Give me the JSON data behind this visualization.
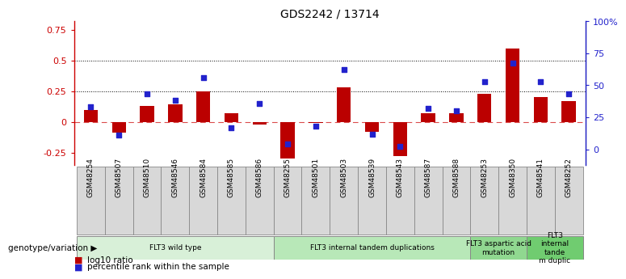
{
  "title": "GDS2242 / 13714",
  "samples": [
    "GSM48254",
    "GSM48507",
    "GSM48510",
    "GSM48546",
    "GSM48584",
    "GSM48585",
    "GSM48586",
    "GSM48255",
    "GSM48501",
    "GSM48503",
    "GSM48539",
    "GSM48543",
    "GSM48587",
    "GSM48588",
    "GSM48253",
    "GSM48350",
    "GSM48541",
    "GSM48252"
  ],
  "log10_ratio": [
    0.1,
    -0.09,
    0.13,
    0.14,
    0.25,
    0.07,
    -0.02,
    -0.3,
    -0.01,
    0.28,
    -0.08,
    -0.28,
    0.07,
    0.07,
    0.23,
    0.6,
    0.2,
    0.17
  ],
  "percentile_rank": [
    33,
    11,
    43,
    38,
    56,
    17,
    36,
    4,
    18,
    62,
    12,
    2,
    32,
    30,
    53,
    67,
    53,
    43
  ],
  "groups": [
    {
      "label": "FLT3 wild type",
      "start": 0,
      "end": 6,
      "color": "#d8f0d8"
    },
    {
      "label": "FLT3 internal tandem duplications",
      "start": 7,
      "end": 13,
      "color": "#b8e8b8"
    },
    {
      "label": "FLT3 aspartic acid\nmutation",
      "start": 14,
      "end": 15,
      "color": "#90d890"
    },
    {
      "label": "FLT3\ninternal\ntande\nm duplic",
      "start": 16,
      "end": 17,
      "color": "#70cc70"
    }
  ],
  "bar_color": "#bb0000",
  "dot_color": "#2222cc",
  "ylim_left": [
    -0.35,
    0.82
  ],
  "ylim_right": [
    -12.25,
    100
  ],
  "yticks_left": [
    -0.25,
    0.0,
    0.25,
    0.5,
    0.75
  ],
  "ytick_labels_left": [
    "-0.25",
    "0",
    "0.25",
    "0.5",
    "0.75"
  ],
  "yticks_right": [
    0,
    25,
    50,
    75,
    100
  ],
  "ytick_labels_right": [
    "0",
    "25",
    "50",
    "75",
    "100%"
  ],
  "hlines": [
    0.25,
    0.5
  ],
  "bar_color_zero": "#cc0000",
  "legend_items": [
    {
      "label": "log10 ratio",
      "color": "#bb0000"
    },
    {
      "label": "percentile rank within the sample",
      "color": "#2222cc"
    }
  ],
  "genotype_label": "genotype/variation"
}
